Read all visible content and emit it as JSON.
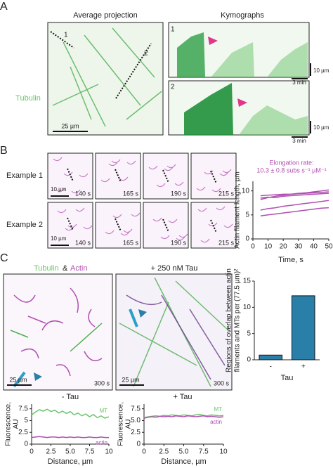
{
  "figure": {
    "panel_labels": [
      "A",
      "B",
      "C"
    ],
    "a": {
      "projection_title": "Average projection",
      "kymo_title": "Kymographs",
      "channel": "Tubulin",
      "line_labels": [
        "1",
        "2"
      ],
      "scale_image": "25 µm",
      "kymo_scale_y": "10 µm",
      "kymo_scale_x": "3 min"
    },
    "b": {
      "rows": [
        "Example 1",
        "Example 2"
      ],
      "times": [
        "140 s",
        "165 s",
        "190 s",
        "215 s"
      ],
      "scale": "10 µm"
    },
    "c": {
      "title_tubulin": "Tubulin",
      "title_amp": "&",
      "title_actin": "Actin",
      "tau_title": "+ 250 nM Tau",
      "time": "300 s",
      "scale": "25 µm"
    }
  },
  "chart_data": [
    {
      "type": "line",
      "ylabel": [
        "Actin filament length, µm"
      ],
      "xlabel": "Time, s",
      "annotation": [
        "Elongation rate:",
        "10.3 ± 0.8 subs s⁻¹ µM⁻¹"
      ],
      "x": [
        5,
        10,
        15,
        20,
        25,
        30,
        35,
        40,
        45,
        50
      ],
      "xlim": [
        0,
        50
      ],
      "xticks": [
        0,
        10,
        20,
        30,
        40,
        50
      ],
      "ylim": [
        0,
        12
      ],
      "yticks": [
        0,
        5,
        10
      ],
      "series": [
        {
          "color": "#b04fb0",
          "values": [
            8.2,
            8.6,
            8.9,
            9.1,
            9.3,
            9.5,
            9.6,
            9.8,
            10.0,
            10.2
          ]
        },
        {
          "color": "#b04fb0",
          "values": [
            8.5,
            8.7,
            8.6,
            8.9,
            9.0,
            9.1,
            9.2,
            9.3,
            9.4,
            9.5
          ]
        },
        {
          "color": "#b04fb0",
          "values": [
            9.0,
            9.1,
            9.2,
            9.3,
            9.3,
            9.4,
            9.5,
            9.6,
            9.7,
            9.8
          ]
        },
        {
          "color": "#b04fb0",
          "values": [
            6.0,
            6.3,
            6.5,
            6.8,
            7.0,
            7.2,
            7.4,
            7.6,
            7.8,
            8.0
          ]
        },
        {
          "color": "#b04fb0",
          "values": [
            4.8,
            5.0,
            5.2,
            5.4,
            5.6,
            5.8,
            6.0,
            6.2,
            6.4,
            6.5
          ]
        }
      ]
    },
    {
      "type": "bar",
      "ylabel": [
        "Regions of overlap between actin",
        "filaments and MTs per (77.5 µm)²"
      ],
      "xlabel": "Tau",
      "categories": [
        "-",
        "+"
      ],
      "values": [
        0.9,
        12.2
      ],
      "color": "#2a7fa8",
      "ylim": [
        0,
        15
      ],
      "yticks": [
        0,
        5,
        10,
        15
      ]
    },
    {
      "type": "line",
      "title": "- Tau",
      "ylabel": [
        "Fluorescence,",
        "AU"
      ],
      "xlabel": "Distance, µm",
      "x": [
        0,
        0.5,
        1,
        1.5,
        2,
        2.5,
        3,
        3.5,
        4,
        4.5,
        5,
        5.5,
        6,
        6.5,
        7,
        7.5,
        8,
        8.5,
        9,
        9.5,
        10
      ],
      "xlim": [
        0,
        10
      ],
      "xticks": [
        0,
        2.5,
        {
          "value": 5,
          "label": "5.0"
        },
        7.5,
        10
      ],
      "ylim": [
        0,
        8.5
      ],
      "yticks": [
        0,
        2.5,
        5,
        7.5
      ],
      "series": [
        {
          "name": "MT",
          "color": "#6cc46c",
          "values": [
            6.2,
            6.8,
            7.3,
            7.0,
            7.4,
            6.9,
            7.2,
            6.6,
            7.0,
            6.5,
            6.9,
            6.2,
            6.6,
            6.0,
            6.4,
            5.8,
            6.3,
            5.6,
            6.0,
            5.5,
            5.8
          ]
        },
        {
          "name": "actin",
          "color": "#b04fb0",
          "values": [
            1.4,
            1.5,
            1.6,
            1.5,
            1.4,
            1.5,
            1.5,
            1.4,
            1.5,
            1.4,
            1.5,
            1.4,
            1.5,
            1.4,
            1.4,
            1.5,
            1.4,
            1.4,
            1.5,
            1.4,
            1.4
          ]
        }
      ]
    },
    {
      "type": "line",
      "title": "+ Tau",
      "ylabel": [
        "Fluorescence,",
        "AU"
      ],
      "xlabel": "Distance, µm",
      "x": [
        0,
        0.5,
        1,
        1.5,
        2,
        2.5,
        3,
        3.5,
        4,
        4.5,
        5,
        5.5,
        6,
        6.5,
        7,
        7.5,
        8,
        8.5,
        9,
        9.5,
        10
      ],
      "xlim": [
        0,
        10
      ],
      "xticks": [
        0,
        2.5,
        {
          "value": 5,
          "label": "5.0"
        },
        7.5,
        10
      ],
      "ylim": [
        0,
        8.5
      ],
      "yticks": [
        0,
        2.5,
        {
          "value": 5,
          "label": "5.0"
        },
        7.5
      ],
      "series": [
        {
          "name": "MT",
          "color": "#6cc46c",
          "values": [
            5.6,
            5.8,
            5.9,
            6.0,
            5.9,
            6.1,
            6.0,
            6.2,
            6.1,
            6.0,
            6.2,
            6.1,
            6.0,
            6.2,
            6.3,
            6.1,
            6.0,
            6.2,
            6.1,
            6.0,
            6.1
          ]
        },
        {
          "name": "actin",
          "color": "#b04fb0",
          "values": [
            5.5,
            5.7,
            5.8,
            5.7,
            5.9,
            5.8,
            5.9,
            5.8,
            6.0,
            5.9,
            5.8,
            6.0,
            5.9,
            5.8,
            5.9,
            6.0,
            5.8,
            5.9,
            5.8,
            5.7,
            5.8
          ]
        }
      ]
    }
  ]
}
